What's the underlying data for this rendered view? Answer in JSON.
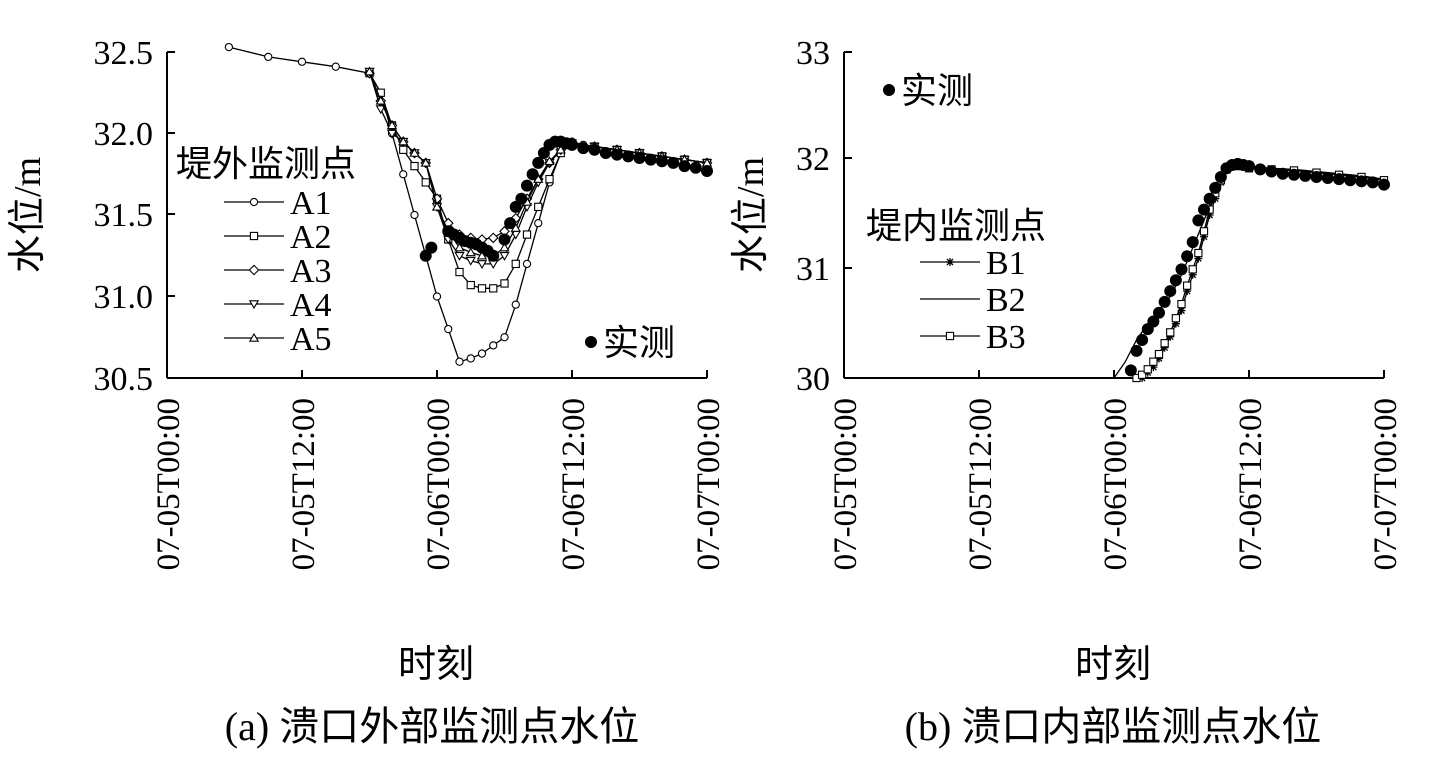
{
  "chart_data": [
    {
      "type": "line",
      "caption": "(a) 溃口外部监测点水位",
      "xlabel": "时刻",
      "ylabel": "水位/m",
      "x_ticks": [
        "07-05T00:00",
        "07-05T12:00",
        "07-06T00:00",
        "07-06T12:00",
        "07-07T00:00"
      ],
      "xlim_hours": [
        0,
        48
      ],
      "ylim": [
        30.5,
        32.5
      ],
      "y_ticks": [
        "30.5",
        "31.0",
        "31.5",
        "32.0",
        "32.5"
      ],
      "legend_title": "堤外监测点",
      "legend_position": "left",
      "observed_label": "实测",
      "series": [
        {
          "name": "A1",
          "marker": "circle",
          "x": [
            5.5,
            9,
            12,
            15,
            18,
            19,
            20,
            21,
            22,
            23,
            24,
            25,
            26,
            27,
            28,
            29,
            30,
            31,
            32,
            33,
            34,
            35,
            36,
            37,
            38,
            40,
            42,
            44,
            46,
            48
          ],
          "y": [
            32.53,
            32.47,
            32.44,
            32.41,
            32.37,
            32.25,
            32.0,
            31.75,
            31.5,
            31.25,
            31.0,
            30.8,
            30.6,
            30.62,
            30.65,
            30.7,
            30.75,
            30.95,
            31.2,
            31.45,
            31.7,
            31.88,
            31.95,
            31.93,
            31.92,
            31.9,
            31.88,
            31.86,
            31.84,
            31.82
          ]
        },
        {
          "name": "A2",
          "marker": "square",
          "x": [
            18,
            19,
            20,
            21,
            22,
            23,
            24,
            25,
            26,
            27,
            28,
            29,
            30,
            31,
            32,
            33,
            34,
            35,
            36,
            38,
            40,
            42,
            44,
            46,
            48
          ],
          "y": [
            32.37,
            32.25,
            32.05,
            31.9,
            31.8,
            31.7,
            31.6,
            31.35,
            31.15,
            31.07,
            31.05,
            31.05,
            31.08,
            31.2,
            31.38,
            31.55,
            31.72,
            31.88,
            31.94,
            31.92,
            31.9,
            31.88,
            31.86,
            31.84,
            31.82
          ]
        },
        {
          "name": "A3",
          "marker": "diamond",
          "x": [
            18,
            19,
            20,
            21,
            22,
            23,
            24,
            25,
            26,
            27,
            28,
            29,
            30,
            31,
            32,
            33,
            34,
            35,
            36,
            38,
            40,
            42,
            44,
            46,
            48
          ],
          "y": [
            32.37,
            32.2,
            32.05,
            31.95,
            31.88,
            31.82,
            31.6,
            31.45,
            31.38,
            31.36,
            31.35,
            31.36,
            31.4,
            31.48,
            31.6,
            31.72,
            31.82,
            31.9,
            31.94,
            31.92,
            31.9,
            31.88,
            31.86,
            31.84,
            31.82
          ]
        },
        {
          "name": "A4",
          "marker": "triangle-down",
          "x": [
            18,
            19,
            20,
            21,
            22,
            23,
            24,
            25,
            26,
            27,
            28,
            29,
            30,
            31,
            32,
            33,
            34,
            35,
            36,
            38,
            40,
            42,
            44,
            46,
            48
          ],
          "y": [
            32.38,
            32.15,
            32.0,
            31.95,
            31.88,
            31.82,
            31.55,
            31.35,
            31.25,
            31.22,
            31.2,
            31.2,
            31.25,
            31.38,
            31.55,
            31.7,
            31.82,
            31.9,
            31.94,
            31.92,
            31.9,
            31.88,
            31.86,
            31.84,
            31.82
          ]
        },
        {
          "name": "A5",
          "marker": "triangle-up",
          "x": [
            18,
            19,
            20,
            21,
            22,
            23,
            24,
            25,
            26,
            27,
            28,
            29,
            30,
            31,
            32,
            33,
            34,
            35,
            36,
            38,
            40,
            42,
            44,
            46,
            48
          ],
          "y": [
            32.38,
            32.2,
            32.05,
            31.95,
            31.88,
            31.82,
            31.55,
            31.4,
            31.3,
            31.27,
            31.25,
            31.25,
            31.3,
            31.42,
            31.58,
            31.72,
            31.83,
            31.9,
            31.94,
            31.92,
            31.9,
            31.88,
            31.86,
            31.84,
            31.82
          ]
        },
        {
          "name": "实测",
          "marker": "filled-circle",
          "x": [
            23,
            23.5,
            25,
            25.5,
            26,
            26.5,
            27,
            27.5,
            28,
            28.5,
            29,
            30,
            30.5,
            31,
            31.5,
            32,
            32.5,
            33,
            33.5,
            34,
            34.5,
            35,
            35.5,
            36,
            37,
            38,
            39,
            40,
            41,
            42,
            43,
            44,
            45,
            46,
            47,
            48
          ],
          "y": [
            31.25,
            31.3,
            31.4,
            31.38,
            31.36,
            31.34,
            31.33,
            31.32,
            31.3,
            31.28,
            31.25,
            31.35,
            31.45,
            31.55,
            31.6,
            31.68,
            31.75,
            31.82,
            31.88,
            31.93,
            31.95,
            31.95,
            31.94,
            31.93,
            31.91,
            31.9,
            31.88,
            31.87,
            31.86,
            31.85,
            31.84,
            31.83,
            31.82,
            31.8,
            31.79,
            31.77
          ]
        }
      ]
    },
    {
      "type": "line",
      "caption": "(b) 溃口内部监测点水位",
      "xlabel": "时刻",
      "ylabel": "水位/m",
      "x_ticks": [
        "07-05T00:00",
        "07-05T12:00",
        "07-06T00:00",
        "07-06T12:00",
        "07-07T00:00"
      ],
      "xlim_hours": [
        0,
        48
      ],
      "ylim": [
        30,
        33
      ],
      "y_ticks": [
        "30",
        "31",
        "32",
        "33"
      ],
      "legend_title": "堤内监测点",
      "legend_position": "left",
      "observed_label": "实测",
      "series": [
        {
          "name": "B1",
          "marker": "star",
          "x": [
            26.5,
            27,
            27.5,
            28,
            28.5,
            29,
            29.5,
            30,
            30.5,
            31,
            31.5,
            32,
            32.5,
            33,
            33.5,
            34,
            34.5,
            35,
            36,
            38,
            40,
            42,
            44,
            46,
            48
          ],
          "y": [
            30.0,
            30.05,
            30.1,
            30.18,
            30.28,
            30.38,
            30.5,
            30.62,
            30.8,
            30.95,
            31.1,
            31.3,
            31.5,
            31.65,
            31.8,
            31.92,
            31.96,
            31.95,
            31.93,
            31.92,
            31.91,
            31.89,
            31.87,
            31.85,
            31.82
          ]
        },
        {
          "name": "B2",
          "marker": "none",
          "x": [
            24,
            25,
            26,
            27,
            28,
            29,
            30,
            31,
            32,
            33,
            34,
            35,
            36,
            38,
            40,
            42,
            44,
            46,
            48
          ],
          "y": [
            30.0,
            30.15,
            30.35,
            30.5,
            30.62,
            30.75,
            30.95,
            31.2,
            31.45,
            31.72,
            31.9,
            31.96,
            31.95,
            31.93,
            31.92,
            31.9,
            31.88,
            31.86,
            31.83
          ]
        },
        {
          "name": "B3",
          "marker": "square",
          "x": [
            26,
            26.5,
            27,
            27.5,
            28,
            28.5,
            29,
            29.5,
            30,
            30.5,
            31,
            31.5,
            32,
            32.5,
            33,
            33.5,
            34,
            34.5,
            35,
            36,
            38,
            40,
            42,
            44,
            46,
            48
          ],
          "y": [
            30.0,
            30.03,
            30.08,
            30.15,
            30.22,
            30.32,
            30.42,
            30.55,
            30.68,
            30.85,
            31.0,
            31.15,
            31.35,
            31.55,
            31.7,
            31.82,
            31.92,
            31.96,
            31.95,
            31.93,
            31.92,
            31.91,
            31.89,
            31.87,
            31.85,
            31.82
          ]
        },
        {
          "name": "实测",
          "marker": "filled-circle",
          "x": [
            25.5,
            26,
            26.5,
            27,
            27.5,
            28,
            28.5,
            29,
            29.5,
            30,
            30.5,
            31,
            31.5,
            32,
            32.5,
            33,
            33.5,
            34,
            34.5,
            35,
            35.5,
            36,
            37,
            38,
            39,
            40,
            41,
            42,
            43,
            44,
            45,
            46,
            47,
            48
          ],
          "y": [
            30.07,
            30.25,
            30.35,
            30.45,
            30.52,
            30.6,
            30.7,
            30.8,
            30.9,
            31.0,
            31.12,
            31.25,
            31.45,
            31.55,
            31.65,
            31.75,
            31.85,
            31.93,
            31.96,
            31.97,
            31.96,
            31.95,
            31.92,
            31.9,
            31.88,
            31.87,
            31.86,
            31.85,
            31.84,
            31.83,
            31.82,
            31.81,
            31.8,
            31.78
          ]
        }
      ]
    }
  ]
}
